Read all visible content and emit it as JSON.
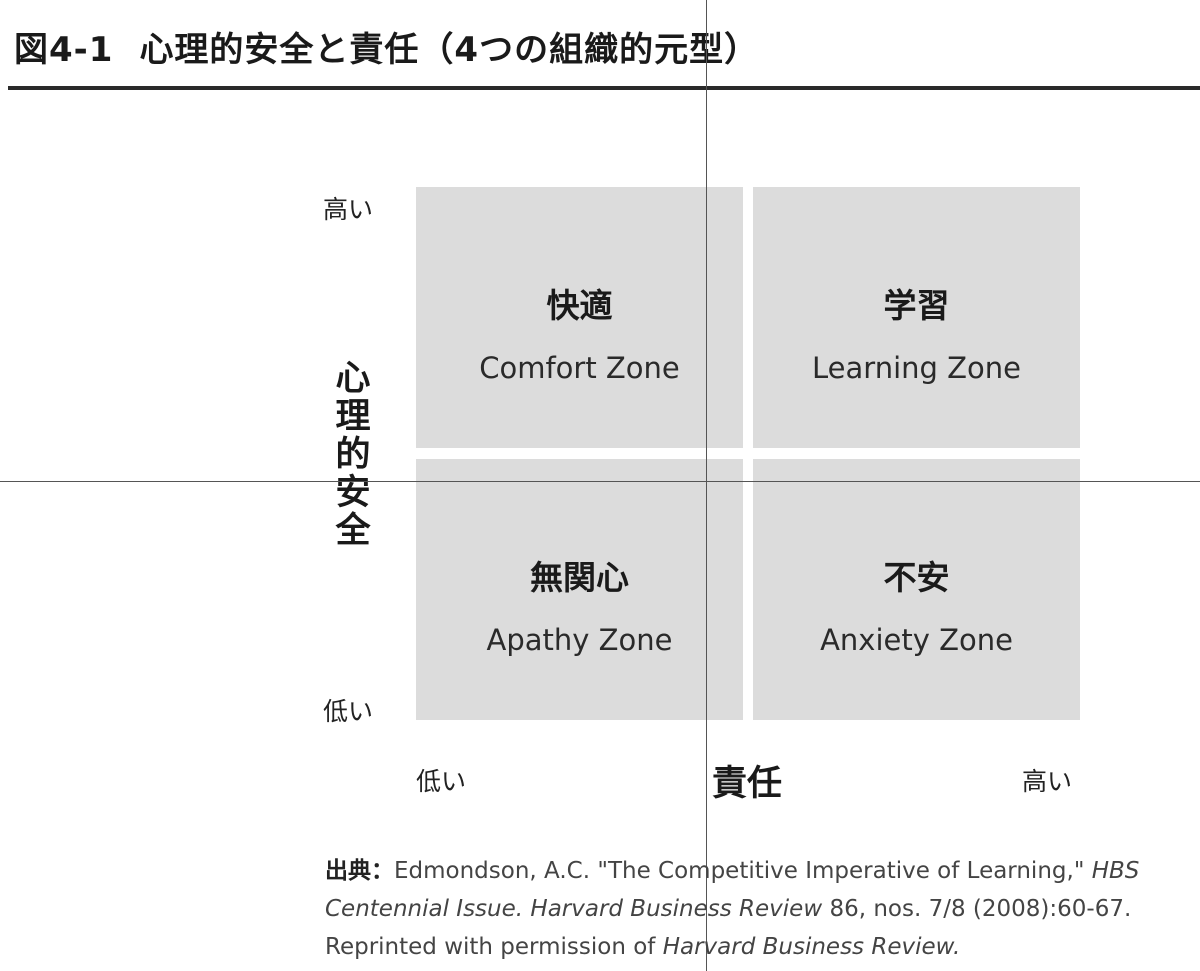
{
  "figure": {
    "number": "図4-1",
    "title": "心理的安全と責任（4つの組織的元型）"
  },
  "y_axis": {
    "label_chars": [
      "心",
      "理",
      "的",
      "安",
      "全"
    ],
    "high": "高い",
    "low": "低い"
  },
  "x_axis": {
    "label": "責任",
    "low": "低い",
    "high": "高い"
  },
  "quadrants": {
    "top_left": {
      "jp": "快適",
      "en": "Comfort Zone"
    },
    "top_right": {
      "jp": "学習",
      "en": "Learning Zone"
    },
    "bottom_left": {
      "jp": "無関心",
      "en": "Apathy Zone"
    },
    "bottom_right": {
      "jp": "不安",
      "en": "Anxiety Zone"
    }
  },
  "source": {
    "label": "出典：",
    "text_1": "Edmondson, A.C. \"The Competitive Imperative of Learning,\" ",
    "italic_1": "HBS Centennial Issue. Harvard Business Review",
    "text_2": " 86, nos. 7/8 (2008):60-67. Reprinted with permission of ",
    "italic_2": "Harvard Business Review.",
    "text_3": ""
  },
  "colors": {
    "cell_fill": "#dcdcdc",
    "rule": "#2a2a2a",
    "guide": "#555555"
  }
}
